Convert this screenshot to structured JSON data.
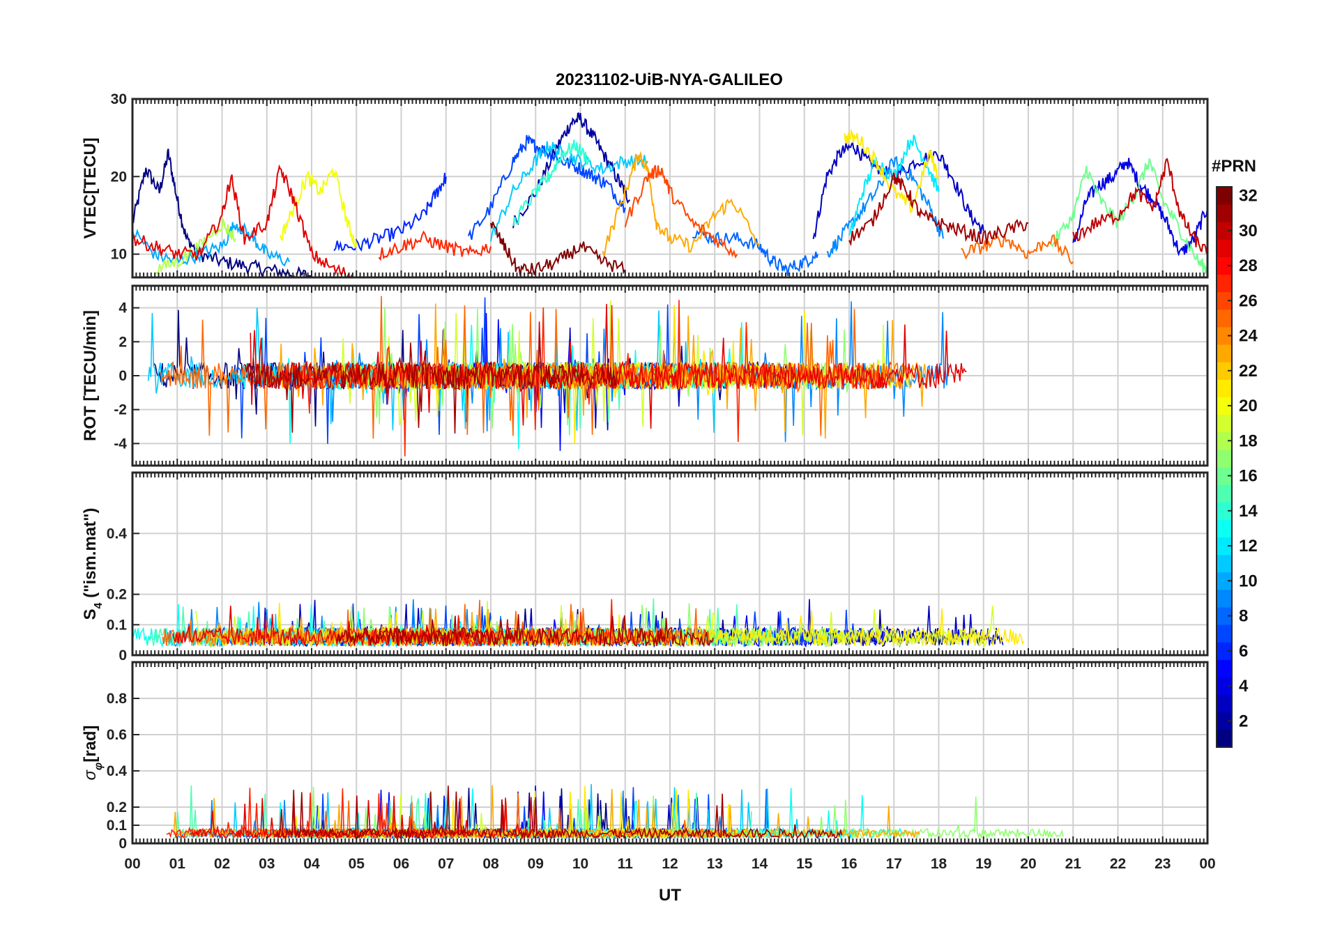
{
  "chart_data": {
    "type": "line",
    "title": "20231102-UiB-NYA-GALILEO",
    "xlabel": "UT",
    "x_tick_labels": [
      "00",
      "01",
      "02",
      "03",
      "04",
      "05",
      "06",
      "07",
      "08",
      "09",
      "10",
      "11",
      "12",
      "13",
      "14",
      "15",
      "16",
      "17",
      "18",
      "19",
      "20",
      "21",
      "22",
      "23",
      "00"
    ],
    "xlim": [
      0,
      24
    ],
    "colorbar": {
      "label": "#PRN",
      "range": [
        1,
        32
      ],
      "tick_labels": [
        "2",
        "4",
        "6",
        "8",
        "10",
        "12",
        "14",
        "16",
        "18",
        "20",
        "22",
        "24",
        "26",
        "28",
        "30",
        "32"
      ]
    },
    "panels": [
      {
        "name": "vtec",
        "ylabel": "VTEC[TECU]",
        "ylim": [
          7,
          30
        ],
        "yticks": [
          10,
          20,
          30
        ],
        "ytick_labels": [
          "10",
          "20",
          "30"
        ],
        "series": [
          {
            "prn": 1,
            "x": [
              0.0,
              0.3,
              0.6,
              0.8,
              1.0,
              1.2,
              1.5,
              2.0,
              2.5,
              3.0,
              3.5,
              4.0
            ],
            "y": [
              14,
              21,
              18,
              23,
              17,
              12,
              10,
              9,
              8.5,
              8,
              7.5,
              7.2
            ]
          },
          {
            "prn": 2,
            "x": [
              8.5,
              9.0,
              9.5,
              9.8,
              10.0,
              10.3,
              10.6,
              10.9,
              11.1
            ],
            "y": [
              14,
              18,
              24,
              27,
              27.5,
              25,
              22,
              19,
              17
            ]
          },
          {
            "prn": 3,
            "x": [
              15.2,
              15.5,
              15.8,
              16.1,
              16.4,
              16.7,
              17.0,
              17.5,
              18.0,
              18.3,
              18.7,
              19.0
            ],
            "y": [
              12,
              20,
              23,
              24,
              22,
              21,
              20,
              22,
              23,
              20,
              15,
              13
            ]
          },
          {
            "prn": 4,
            "x": [
              21.0,
              21.3,
              21.6,
              21.9,
              22.2,
              22.5,
              22.8,
              23.1,
              23.4,
              23.7,
              24.0
            ],
            "y": [
              11,
              17,
              19,
              20,
              22,
              19,
              17,
              14,
              10,
              12,
              16
            ]
          },
          {
            "prn": 6,
            "x": [
              4.5,
              5.0,
              5.5,
              6.0,
              6.5,
              6.8,
              7.0
            ],
            "y": [
              11,
              11,
              12,
              13,
              15,
              18,
              20
            ]
          },
          {
            "prn": 7,
            "x": [
              7.5,
              8.0,
              8.5,
              8.8,
              9.0,
              9.3,
              9.6,
              10.0,
              10.3,
              10.6,
              11.0
            ],
            "y": [
              12,
              16,
              22,
              24.5,
              24,
              23,
              22,
              21,
              20,
              19,
              16
            ]
          },
          {
            "prn": 8,
            "x": [
              12.5,
              13.0,
              13.5,
              14.0,
              14.3,
              14.6,
              15.0,
              15.3
            ],
            "y": [
              13,
              12,
              12,
              11,
              9,
              8,
              9,
              10
            ]
          },
          {
            "prn": 9,
            "x": [
              15.5,
              15.8,
              16.2,
              16.6,
              17.0,
              17.4,
              17.8,
              18.1
            ],
            "y": [
              10,
              12,
              15,
              18,
              22,
              20,
              16,
              12
            ]
          },
          {
            "prn": 10,
            "x": [
              0.0,
              0.5,
              1.0,
              1.5,
              2.0,
              2.3,
              2.7,
              3.0,
              3.5
            ],
            "y": [
              13,
              10,
              9,
              10,
              11,
              14,
              12,
              10,
              9
            ]
          },
          {
            "prn": 11,
            "x": [
              8.0,
              8.5,
              9.0,
              9.3,
              9.6,
              10.0,
              10.5,
              11.0,
              11.5
            ],
            "y": [
              12,
              18,
              22,
              24,
              23,
              22,
              21,
              22,
              22
            ]
          },
          {
            "prn": 12,
            "x": [
              16.0,
              16.3,
              16.6,
              17.0,
              17.4,
              17.7,
              18.0
            ],
            "y": [
              12,
              18,
              22,
              20,
              25,
              22,
              18
            ]
          },
          {
            "prn": 14,
            "x": [
              8.5,
              9.0,
              9.3,
              9.6,
              9.9,
              10.2
            ],
            "y": [
              14,
              18,
              20,
              23,
              24,
              22
            ]
          },
          {
            "prn": 16,
            "x": [
              20.5,
              21.0,
              21.3,
              21.6,
              22.0,
              22.4,
              22.7,
              23.0,
              23.4,
              23.8,
              24.0
            ],
            "y": [
              11,
              15,
              21,
              17,
              14,
              18,
              22,
              17,
              13,
              9,
              8
            ]
          },
          {
            "prn": 18,
            "x": [
              0.5,
              1.0,
              1.5,
              2.0,
              2.3
            ],
            "y": [
              8,
              9,
              11,
              14,
              12
            ]
          },
          {
            "prn": 20,
            "x": [
              3.3,
              3.6,
              3.9,
              4.2,
              4.5,
              4.8,
              5.0
            ],
            "y": [
              12,
              16,
              20,
              18,
              21,
              14,
              11
            ]
          },
          {
            "prn": 21,
            "x": [
              15.9,
              16.2,
              16.6,
              17.0,
              17.4,
              17.8,
              18.0
            ],
            "y": [
              25,
              25,
              22,
              18,
              16,
              23,
              20
            ]
          },
          {
            "prn": 23,
            "x": [
              10.5,
              11.0,
              11.3,
              11.5,
              11.7,
              12.0,
              12.5,
              13.0,
              13.4,
              14.0
            ],
            "y": [
              10,
              18,
              23,
              21,
              14,
              12,
              11,
              15,
              17,
              11
            ]
          },
          {
            "prn": 25,
            "x": [
              18.5,
              19.0,
              19.5,
              20.0,
              20.5,
              21.0
            ],
            "y": [
              10,
              11,
              12,
              10,
              12,
              9
            ]
          },
          {
            "prn": 26,
            "x": [
              11.0,
              11.5,
              11.8,
              12.0,
              12.5,
              13.0,
              13.5
            ],
            "y": [
              14,
              20,
              21,
              18,
              14,
              12,
              10
            ]
          },
          {
            "prn": 27,
            "x": [
              5.5,
              6.0,
              6.5,
              7.0,
              7.5,
              8.0
            ],
            "y": [
              10,
              11,
              12,
              11,
              10,
              11
            ]
          },
          {
            "prn": 29,
            "x": [
              0.0,
              0.5,
              1.0,
              1.5,
              2.0,
              2.2,
              2.5,
              3.0,
              3.3,
              3.6,
              4.0,
              4.5,
              5.0
            ],
            "y": [
              12,
              11,
              10,
              10,
              15,
              20,
              12,
              14,
              21,
              17,
              10,
              8,
              7
            ]
          },
          {
            "prn": 31,
            "x": [
              16.0,
              16.5,
              17.0,
              17.3,
              17.6,
              18.0,
              18.5,
              19.0,
              19.5,
              20.0
            ],
            "y": [
              12,
              14,
              20,
              18,
              15,
              14,
              13,
              12,
              13,
              14
            ]
          },
          {
            "prn": 32,
            "x": [
              8.0,
              8.3,
              8.6,
              9.0,
              9.5,
              10.0,
              10.5,
              11.0
            ],
            "y": [
              14,
              11,
              8,
              8,
              9,
              11,
              9,
              8
            ]
          },
          {
            "prn": 30,
            "x": [
              21.0,
              21.5,
              22.0,
              22.4,
              22.8,
              23.1,
              23.4,
              23.7,
              24.0
            ],
            "y": [
              12,
              14,
              15,
              18,
              16,
              22,
              15,
              12,
              10
            ]
          }
        ]
      },
      {
        "name": "rot",
        "ylabel": "ROT [TECU/min]",
        "ylim": [
          -5.3,
          5.3
        ],
        "yticks": [
          -4,
          -2,
          0,
          2,
          4
        ],
        "ytick_labels": [
          "-4",
          "-2",
          "0",
          "2",
          "4"
        ]
      },
      {
        "name": "s4",
        "ylabel": "S4 (\"ism.mat\")",
        "ylabel_main": "S",
        "ylabel_sub": "4",
        "ylabel_rest": " (\"ism.mat\")",
        "ylim": [
          0,
          0.6
        ],
        "yticks": [
          0,
          0.1,
          0.2,
          0.4
        ],
        "ytick_labels": [
          "0",
          "0.1",
          "0.2",
          "0.4"
        ]
      },
      {
        "name": "sigma_phi",
        "ylabel": "σφ[rad]",
        "ylabel_main": "σ",
        "ylabel_sub": "φ",
        "ylabel_rest": "[rad]",
        "ylim": [
          0,
          1.0
        ],
        "yticks": [
          0,
          0.1,
          0.2,
          0.4,
          0.6,
          0.8
        ],
        "ytick_labels": [
          "0",
          "0.1",
          "0.2",
          "0.4",
          "0.6",
          "0.8"
        ]
      }
    ]
  }
}
